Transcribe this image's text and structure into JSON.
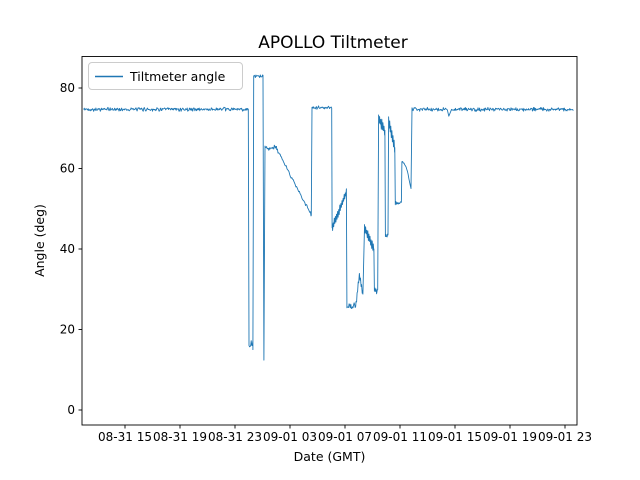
{
  "figure": {
    "background": "#ffffff"
  },
  "chart_data": {
    "type": "line",
    "title": "APOLLO Tiltmeter",
    "xlabel": "Date (GMT)",
    "ylabel": "Angle (deg)",
    "legend": {
      "entries": [
        "Tiltmeter angle"
      ],
      "position": "upper-left",
      "border_color": "#cccccc",
      "background": "#ffffff"
    },
    "line_color": "#1f77b4",
    "axis_color": "#000000",
    "grid": false,
    "x_tick_labels": [
      "08-31 15",
      "08-31 19",
      "08-31 23",
      "09-01 03",
      "09-01 07",
      "09-01 11",
      "09-01 15",
      "09-01 19",
      "09-01 23"
    ],
    "x_tick_hours": [
      3,
      7,
      11,
      15,
      19,
      23,
      27,
      31,
      35
    ],
    "y_tick_labels": [
      "0",
      "20",
      "40",
      "60",
      "80"
    ],
    "y_tick_values": [
      0,
      20,
      40,
      60,
      80
    ],
    "ylim": [
      -3.7,
      87.8
    ],
    "xlim_hours": [
      -0.13,
      35.87
    ],
    "time_origin_of_t": "08-31 12:00 GMT",
    "series": [
      {
        "name": "Tiltmeter angle",
        "angle_unit": "deg",
        "segments": [
          {
            "type": "flat",
            "t0": 0.0,
            "t1": 11.97,
            "v": 74.7,
            "noise": 0.55
          },
          {
            "type": "line",
            "t0": 11.97,
            "t1": 12.02,
            "v0": 74.7,
            "v1": 16.5
          },
          {
            "type": "flat",
            "t0": 12.02,
            "t1": 12.3,
            "v": 16.0,
            "noise": 1.4
          },
          {
            "type": "line",
            "t0": 12.3,
            "t1": 12.36,
            "v0": 15.0,
            "v1": 82.8
          },
          {
            "type": "flat",
            "t0": 12.36,
            "t1": 13.04,
            "v": 82.9,
            "noise": 0.6
          },
          {
            "type": "line",
            "t0": 13.04,
            "t1": 13.1,
            "v0": 82.5,
            "v1": 12.4
          },
          {
            "type": "line",
            "t0": 13.1,
            "t1": 13.18,
            "v0": 12.4,
            "v1": 65.3
          },
          {
            "type": "flat",
            "t0": 13.18,
            "t1": 14.03,
            "v": 65.2,
            "noise": 0.8
          },
          {
            "type": "ramp",
            "t0": 14.03,
            "t1": 16.55,
            "v0": 64.9,
            "v1": 48.4,
            "noise": 0.5
          },
          {
            "type": "line",
            "t0": 16.55,
            "t1": 16.6,
            "v0": 48.4,
            "v1": 75.2
          },
          {
            "type": "flat",
            "t0": 16.6,
            "t1": 18.03,
            "v": 75.1,
            "noise": 0.5
          },
          {
            "type": "line",
            "t0": 18.03,
            "t1": 18.06,
            "v0": 75.0,
            "v1": 45.3
          },
          {
            "type": "zigzag",
            "t0": 18.06,
            "t1": 19.1,
            "v0": 45.3,
            "v1": 54.0,
            "teeth": 1.1
          },
          {
            "type": "line",
            "t0": 19.1,
            "t1": 19.14,
            "v0": 54.0,
            "v1": 26.5
          },
          {
            "type": "flat",
            "t0": 19.14,
            "t1": 19.8,
            "v": 25.6,
            "noise": 1.2
          },
          {
            "type": "zigzag",
            "t0": 19.8,
            "t1": 20.05,
            "v0": 26.5,
            "v1": 33.5,
            "teeth": 1.0
          },
          {
            "type": "zigzag",
            "t0": 20.05,
            "t1": 20.3,
            "v0": 33.5,
            "v1": 28.8,
            "teeth": 0.8
          },
          {
            "type": "line",
            "t0": 20.3,
            "t1": 20.42,
            "v0": 28.8,
            "v1": 45.4
          },
          {
            "type": "zigzag",
            "t0": 20.42,
            "t1": 21.1,
            "v0": 45.4,
            "v1": 40.0,
            "teeth": 1.2
          },
          {
            "type": "line",
            "t0": 21.1,
            "t1": 21.14,
            "v0": 40.0,
            "v1": 29.5
          },
          {
            "type": "flat",
            "t0": 21.14,
            "t1": 21.38,
            "v": 29.5,
            "noise": 1.0
          },
          {
            "type": "line",
            "t0": 21.38,
            "t1": 21.44,
            "v0": 30.0,
            "v1": 72.4
          },
          {
            "type": "zigzag",
            "t0": 21.44,
            "t1": 21.9,
            "v0": 72.4,
            "v1": 69.5,
            "teeth": 1.4
          },
          {
            "type": "line",
            "t0": 21.9,
            "t1": 21.94,
            "v0": 69.5,
            "v1": 43.2
          },
          {
            "type": "flat",
            "t0": 21.94,
            "t1": 22.13,
            "v": 43.3,
            "noise": 0.5
          },
          {
            "type": "line",
            "t0": 22.13,
            "t1": 22.17,
            "v0": 43.5,
            "v1": 71.6
          },
          {
            "type": "zigzag",
            "t0": 22.17,
            "t1": 22.62,
            "v0": 71.6,
            "v1": 65.2,
            "teeth": 1.6
          },
          {
            "type": "line",
            "t0": 22.62,
            "t1": 22.66,
            "v0": 65.2,
            "v1": 51.0
          },
          {
            "type": "flat",
            "t0": 22.66,
            "t1": 23.1,
            "v": 51.5,
            "noise": 0.7
          },
          {
            "type": "line",
            "t0": 23.1,
            "t1": 23.14,
            "v0": 52.0,
            "v1": 61.7
          },
          {
            "type": "arc",
            "t0": 23.14,
            "t1": 23.8,
            "v0": 61.7,
            "v1": 54.7
          },
          {
            "type": "line",
            "t0": 23.8,
            "t1": 23.87,
            "v0": 55.0,
            "v1": 74.8
          },
          {
            "type": "flat",
            "t0": 23.87,
            "t1": 26.45,
            "v": 74.7,
            "noise": 0.55
          },
          {
            "type": "line",
            "t0": 26.45,
            "t1": 26.55,
            "v0": 74.5,
            "v1": 73.0
          },
          {
            "type": "line",
            "t0": 26.55,
            "t1": 26.75,
            "v0": 73.0,
            "v1": 74.7
          },
          {
            "type": "flat",
            "t0": 26.75,
            "t1": 35.6,
            "v": 74.7,
            "noise": 0.55
          }
        ]
      }
    ]
  }
}
